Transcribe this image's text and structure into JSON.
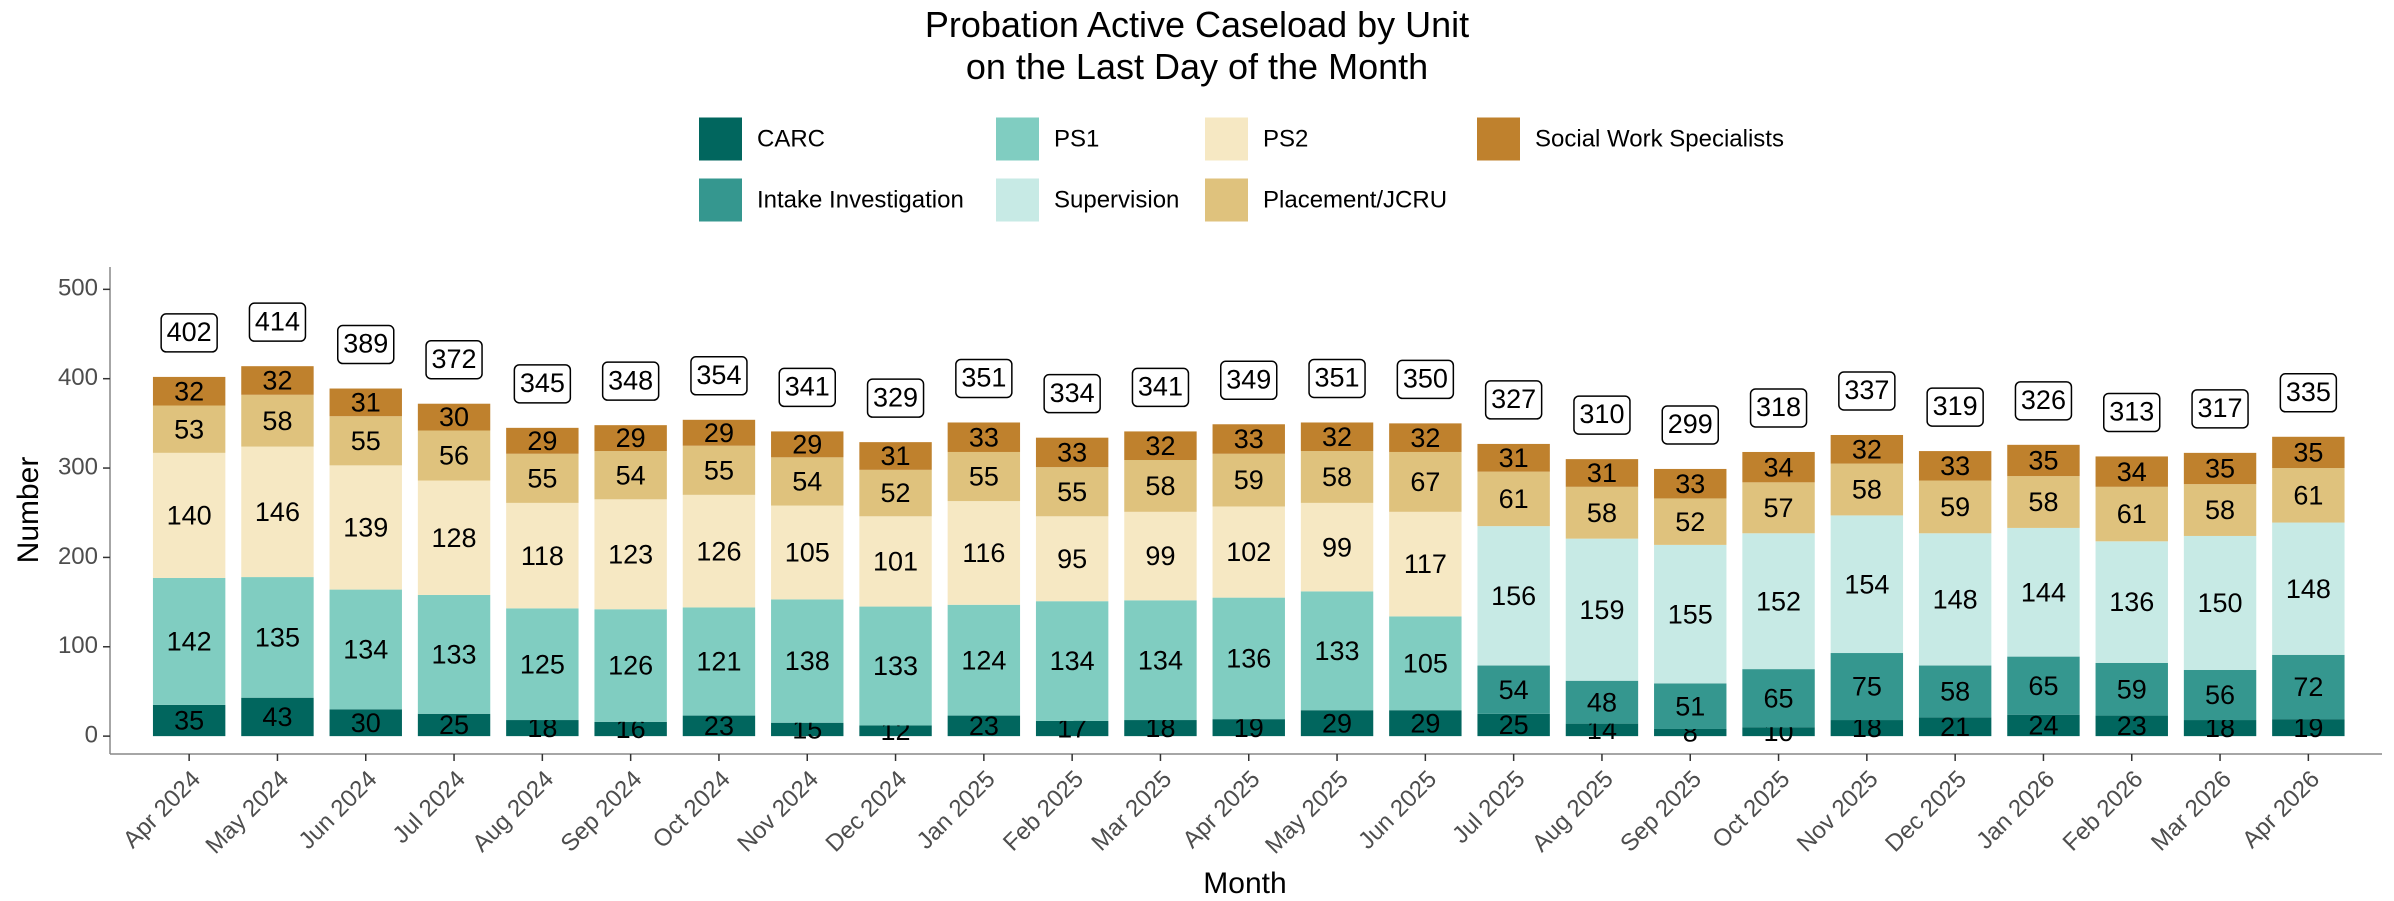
{
  "chart_data": {
    "type": "stacked-bar",
    "title": "Probation Active Caseload by Unit\non the Last Day of the Month",
    "xlabel": "Month",
    "ylabel": "Number",
    "categories": [
      "Apr 2024",
      "May 2024",
      "Jun 2024",
      "Jul 2024",
      "Aug 2024",
      "Sep 2024",
      "Oct 2024",
      "Nov 2024",
      "Dec 2024",
      "Jan 2025",
      "Feb 2025",
      "Mar 2025",
      "Apr 2025",
      "May 2025",
      "Jun 2025",
      "Jul 2025",
      "Aug 2025",
      "Sep 2025",
      "Oct 2025",
      "Nov 2025",
      "Dec 2025",
      "Jan 2026",
      "Feb 2026",
      "Mar 2026",
      "Apr 2026"
    ],
    "series": [
      {
        "name": "CARC",
        "color": "#01665e",
        "values": [
          35,
          43,
          30,
          25,
          18,
          16,
          23,
          15,
          12,
          23,
          17,
          18,
          19,
          29,
          29,
          25,
          14,
          8,
          10,
          18,
          21,
          24,
          23,
          18,
          19
        ]
      },
      {
        "name": "Intake Investigation",
        "color": "#35978f",
        "values": [
          null,
          null,
          null,
          null,
          null,
          null,
          null,
          null,
          null,
          null,
          null,
          null,
          null,
          null,
          null,
          54,
          48,
          51,
          65,
          75,
          58,
          65,
          59,
          56,
          72
        ]
      },
      {
        "name": "PS1",
        "color": "#80cdc1",
        "values": [
          142,
          135,
          134,
          133,
          125,
          126,
          121,
          138,
          133,
          124,
          134,
          134,
          136,
          133,
          105,
          null,
          null,
          null,
          null,
          null,
          null,
          null,
          null,
          null,
          null
        ]
      },
      {
        "name": "Supervision",
        "color": "#c7eae5",
        "values": [
          null,
          null,
          null,
          null,
          null,
          null,
          null,
          null,
          null,
          null,
          null,
          null,
          null,
          null,
          null,
          156,
          159,
          155,
          152,
          154,
          148,
          144,
          136,
          150,
          148
        ]
      },
      {
        "name": "PS2",
        "color": "#f6e8c3",
        "values": [
          140,
          146,
          139,
          128,
          118,
          123,
          126,
          105,
          101,
          116,
          95,
          99,
          102,
          99,
          117,
          null,
          null,
          null,
          null,
          null,
          null,
          null,
          null,
          null,
          null
        ]
      },
      {
        "name": "Placement/JCRU",
        "color": "#dfc27d",
        "values": [
          53,
          58,
          55,
          56,
          55,
          54,
          55,
          54,
          52,
          55,
          55,
          58,
          59,
          58,
          67,
          61,
          58,
          52,
          57,
          58,
          59,
          58,
          61,
          58,
          61
        ]
      },
      {
        "name": "Social Work Specialists",
        "color": "#bf812d",
        "values": [
          32,
          32,
          31,
          30,
          29,
          29,
          29,
          29,
          31,
          33,
          33,
          32,
          33,
          32,
          32,
          31,
          31,
          33,
          34,
          32,
          33,
          35,
          34,
          35,
          35
        ]
      }
    ],
    "totals": [
      402,
      414,
      389,
      372,
      345,
      348,
      354,
      341,
      329,
      351,
      334,
      341,
      349,
      351,
      350,
      327,
      310,
      299,
      318,
      337,
      319,
      326,
      313,
      317,
      335
    ],
    "ylim": [
      -20,
      525
    ],
    "yticks": [
      0,
      100,
      200,
      300,
      400,
      500
    ],
    "grid": false
  }
}
